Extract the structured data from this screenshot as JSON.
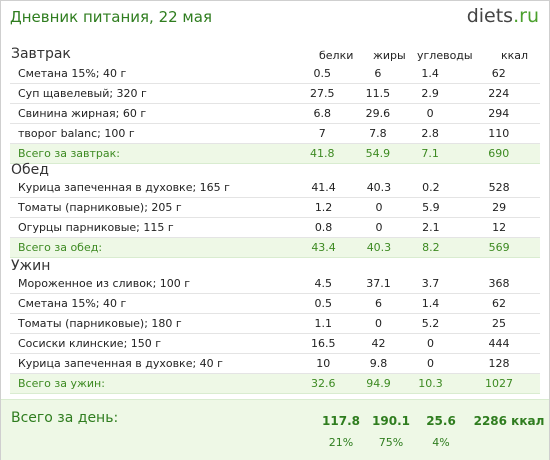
{
  "header": {
    "title": "Дневник питания, 22 мая",
    "logo_main": "diets",
    "logo_tld": ".ru"
  },
  "columns": {
    "protein": "белки",
    "fat": "жиры",
    "carbs": "углеводы",
    "kcal": "ккал"
  },
  "sections": [
    {
      "title": "Завтрак",
      "items": [
        {
          "name": "Сметана 15%; 40 г",
          "protein": "0.5",
          "fat": "6",
          "carbs": "1.4",
          "kcal": "62"
        },
        {
          "name": "Суп щавелевый; 320 г",
          "protein": "27.5",
          "fat": "11.5",
          "carbs": "2.9",
          "kcal": "224"
        },
        {
          "name": "Свинина жирная; 60 г",
          "protein": "6.8",
          "fat": "29.6",
          "carbs": "0",
          "kcal": "294"
        },
        {
          "name": "творог balanc; 100 г",
          "protein": "7",
          "fat": "7.8",
          "carbs": "2.8",
          "kcal": "110"
        }
      ],
      "total": {
        "name": "Всего за завтрак:",
        "protein": "41.8",
        "fat": "54.9",
        "carbs": "7.1",
        "kcal": "690"
      }
    },
    {
      "title": "Обед",
      "items": [
        {
          "name": "Курица запеченная в духовке; 165 г",
          "protein": "41.4",
          "fat": "40.3",
          "carbs": "0.2",
          "kcal": "528"
        },
        {
          "name": "Томаты (парниковые); 205 г",
          "protein": "1.2",
          "fat": "0",
          "carbs": "5.9",
          "kcal": "29"
        },
        {
          "name": "Огурцы парниковые; 115 г",
          "protein": "0.8",
          "fat": "0",
          "carbs": "2.1",
          "kcal": "12"
        }
      ],
      "total": {
        "name": "Всего за обед:",
        "protein": "43.4",
        "fat": "40.3",
        "carbs": "8.2",
        "kcal": "569"
      }
    },
    {
      "title": "Ужин",
      "items": [
        {
          "name": "Мороженное из сливок; 100 г",
          "protein": "4.5",
          "fat": "37.1",
          "carbs": "3.7",
          "kcal": "368"
        },
        {
          "name": "Сметана 15%; 40 г",
          "protein": "0.5",
          "fat": "6",
          "carbs": "1.4",
          "kcal": "62"
        },
        {
          "name": "Томаты (парниковые); 180 г",
          "protein": "1.1",
          "fat": "0",
          "carbs": "5.2",
          "kcal": "25"
        },
        {
          "name": "Сосиски клинские; 150 г",
          "protein": "16.5",
          "fat": "42",
          "carbs": "0",
          "kcal": "444"
        },
        {
          "name": "Курица запеченная в духовке; 40 г",
          "protein": "10",
          "fat": "9.8",
          "carbs": "0",
          "kcal": "128"
        }
      ],
      "total": {
        "name": "Всего за ужин:",
        "protein": "32.6",
        "fat": "94.9",
        "carbs": "10.3",
        "kcal": "1027"
      }
    }
  ],
  "day_total": {
    "label": "Всего за день:",
    "protein": "117.8",
    "fat": "190.1",
    "carbs": "25.6",
    "kcal": "2286 ккал",
    "protein_pct": "21%",
    "fat_pct": "75%",
    "carbs_pct": "4%"
  },
  "colors": {
    "accent_green": "#2f7d1f",
    "total_row_bg": "#eef8e6",
    "total_row_text": "#3d8a22"
  }
}
